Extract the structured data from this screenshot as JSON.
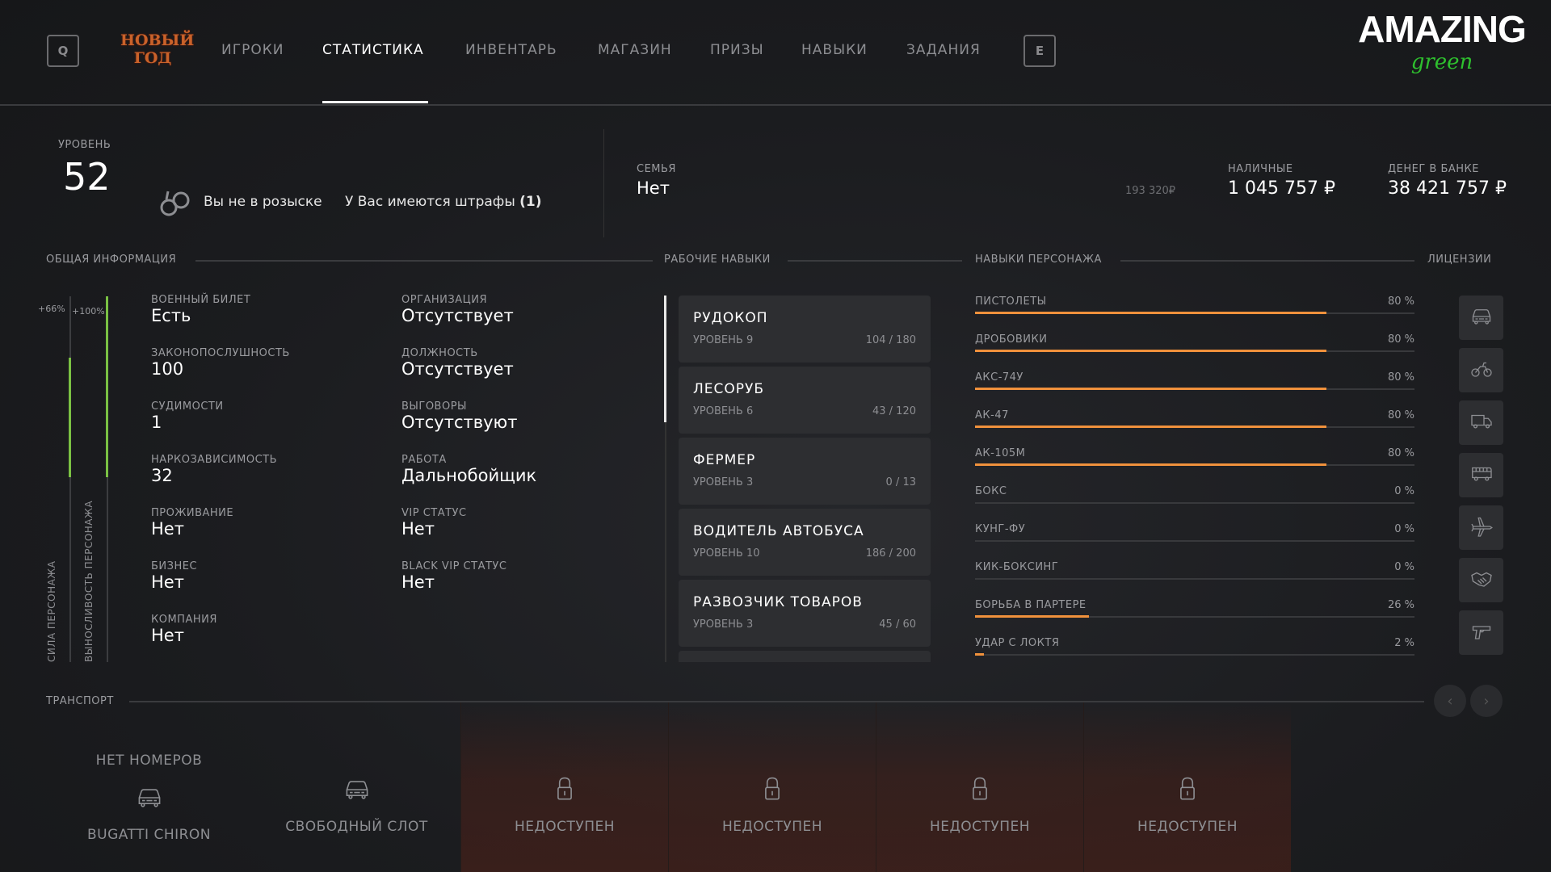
{
  "header": {
    "left_key": "Q",
    "right_key": "E",
    "event_logo": [
      "НОВЫЙ",
      "ГОД"
    ],
    "tabs": [
      {
        "label": "ИГРОКИ"
      },
      {
        "label": "СТАТИСТИКА",
        "active": true
      },
      {
        "label": "ИНВЕНТАРЬ"
      },
      {
        "label": "МАГАЗИН"
      },
      {
        "label": "ПРИЗЫ"
      },
      {
        "label": "НАВЫКИ"
      },
      {
        "label": "ЗАДАНИЯ"
      }
    ],
    "brand": {
      "main": "AMAZING",
      "sub": "green"
    }
  },
  "summary": {
    "level_label": "УРОВЕНЬ",
    "level": "52",
    "wanted_status": "Вы не в розыске",
    "fines_text": "У Вас имеются штрафы",
    "fines_count": "(1)",
    "family_label": "СЕМЬЯ",
    "family": "Нет",
    "small_amount": "193 320₽",
    "cash_label": "НАЛИЧНЫЕ",
    "cash": "1 045 757 ₽",
    "bank_label": "ДЕНЕГ В БАНКЕ",
    "bank": "38 421 757 ₽"
  },
  "sections": {
    "general": "ОБЩАЯ ИНФОРМАЦИЯ",
    "jobs": "РАБОЧИЕ НАВЫКИ",
    "skills": "НАВЫКИ ПЕРСОНАЖА",
    "licenses": "ЛИЦЕНЗИИ",
    "transport": "ТРАНСПОРТ"
  },
  "stats_bars": {
    "strength": {
      "label": "СИЛА ПЕРСОНАЖА",
      "bonus": "+66%",
      "fill": 0.66
    },
    "stamina": {
      "label": "ВЫНОСЛИВОСТЬ ПЕРСОНАЖА",
      "bonus": "+100%",
      "fill": 1.0
    }
  },
  "general_info": {
    "left": [
      {
        "label": "ВОЕННЫЙ БИЛЕТ",
        "value": "Есть"
      },
      {
        "label": "ЗАКОНОПОСЛУШНОСТЬ",
        "value": "100"
      },
      {
        "label": "СУДИМОСТИ",
        "value": "1"
      },
      {
        "label": "НАРКОЗАВИСИМОСТЬ",
        "value": "32"
      },
      {
        "label": "ПРОЖИВАНИЕ",
        "value": "Нет"
      },
      {
        "label": "БИЗНЕС",
        "value": "Нет"
      },
      {
        "label": "КОМПАНИЯ",
        "value": "Нет"
      }
    ],
    "right": [
      {
        "label": "ОРГАНИЗАЦИЯ",
        "value": "Отсутствует"
      },
      {
        "label": "ДОЛЖНОСТЬ",
        "value": "Отсутствует"
      },
      {
        "label": "ВЫГОВОРЫ",
        "value": "Отсутствуют"
      },
      {
        "label": "РАБОТА",
        "value": "Дальнобойщик"
      },
      {
        "label": "VIP СТАТУС",
        "value": "Нет"
      },
      {
        "label": "BLACK VIP СТАТУС",
        "value": "Нет"
      }
    ]
  },
  "jobs": [
    {
      "name": "РУДОКОП",
      "level": "УРОВЕНЬ 9",
      "progress": "104 / 180"
    },
    {
      "name": "ЛЕСОРУБ",
      "level": "УРОВЕНЬ 6",
      "progress": "43 / 120"
    },
    {
      "name": "ФЕРМЕР",
      "level": "УРОВЕНЬ 3",
      "progress": "0 / 13"
    },
    {
      "name": "ВОДИТЕЛЬ АВТОБУСА",
      "level": "УРОВЕНЬ 10",
      "progress": "186 / 200"
    },
    {
      "name": "РАЗВОЗЧИК ТОВАРОВ",
      "level": "УРОВЕНЬ 3",
      "progress": "45 / 60"
    }
  ],
  "skills": [
    {
      "name": "ПИСТОЛЕТЫ",
      "percent": 80,
      "label": "80 %"
    },
    {
      "name": "ДРОБОВИКИ",
      "percent": 80,
      "label": "80 %"
    },
    {
      "name": "АКС-74У",
      "percent": 80,
      "label": "80 %"
    },
    {
      "name": "АК-47",
      "percent": 80,
      "label": "80 %"
    },
    {
      "name": "АК-105М",
      "percent": 80,
      "label": "80 %"
    },
    {
      "name": "БОКС",
      "percent": 0,
      "label": "0 %"
    },
    {
      "name": "КУНГ-ФУ",
      "percent": 0,
      "label": "0 %"
    },
    {
      "name": "КИК-БОКСИНГ",
      "percent": 0,
      "label": "0 %"
    },
    {
      "name": "БОРЬБА В ПАРТЕРЕ",
      "percent": 26,
      "label": "26 %"
    },
    {
      "name": "УДАР С ЛОКТЯ",
      "percent": 2,
      "label": "2 %"
    }
  ],
  "licenses": [
    "car-icon",
    "motorcycle-icon",
    "truck-icon",
    "bus-icon",
    "plane-icon",
    "handshake-icon",
    "pistol-icon"
  ],
  "transport": [
    {
      "plate": "НЕТ НОМЕРОВ",
      "name": "BUGATTI CHIRON",
      "icon": "car-icon"
    },
    {
      "name": "СВОБОДНЫЙ СЛОТ",
      "icon": "car-icon"
    },
    {
      "name": "НЕДОСТУПЕН",
      "icon": "lock-icon"
    },
    {
      "name": "НЕДОСТУПЕН",
      "icon": "lock-icon"
    },
    {
      "name": "НЕДОСТУПЕН",
      "icon": "lock-icon"
    },
    {
      "name": "НЕДОСТУПЕН",
      "icon": "lock-icon"
    }
  ],
  "colors": {
    "accent_orange": "#f0913c",
    "accent_green": "#7ac143",
    "brand_green": "#2ec02e"
  }
}
